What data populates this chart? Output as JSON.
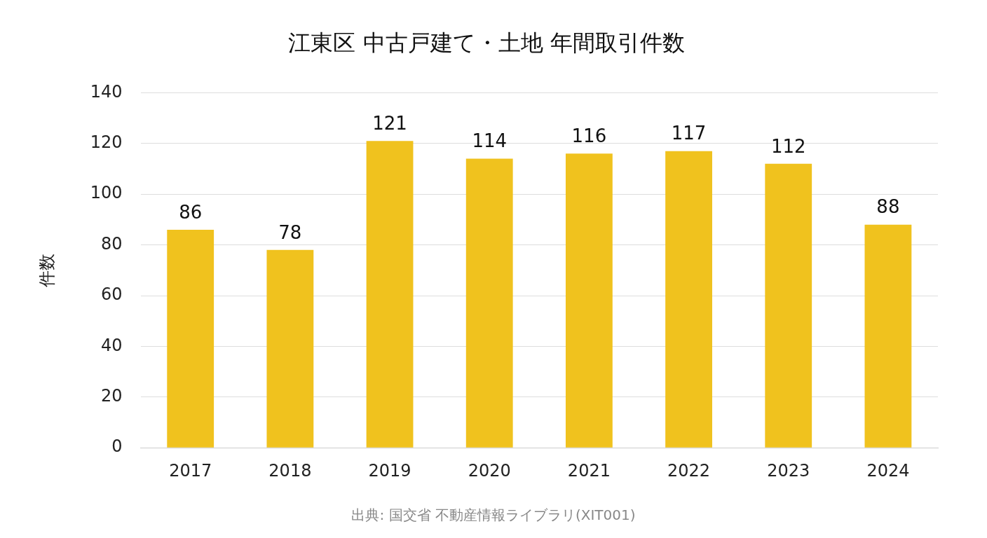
{
  "chart_data": {
    "type": "bar",
    "title": "江東区 中古戸建て・土地 年間取引件数",
    "ylabel": "件数",
    "categories": [
      "2017",
      "2018",
      "2019",
      "2020",
      "2021",
      "2022",
      "2023",
      "2024"
    ],
    "values": [
      86,
      78,
      121,
      114,
      116,
      117,
      112,
      88
    ],
    "color": "#f0c21e",
    "ylim": [
      0,
      140
    ],
    "yticks": [
      0,
      20,
      40,
      60,
      80,
      100,
      120,
      140
    ],
    "grid": "y",
    "legend": false,
    "data_labels": true,
    "annotations": [
      "出典: 国交省 不動産情報ライブラリ(XIT001)"
    ]
  }
}
